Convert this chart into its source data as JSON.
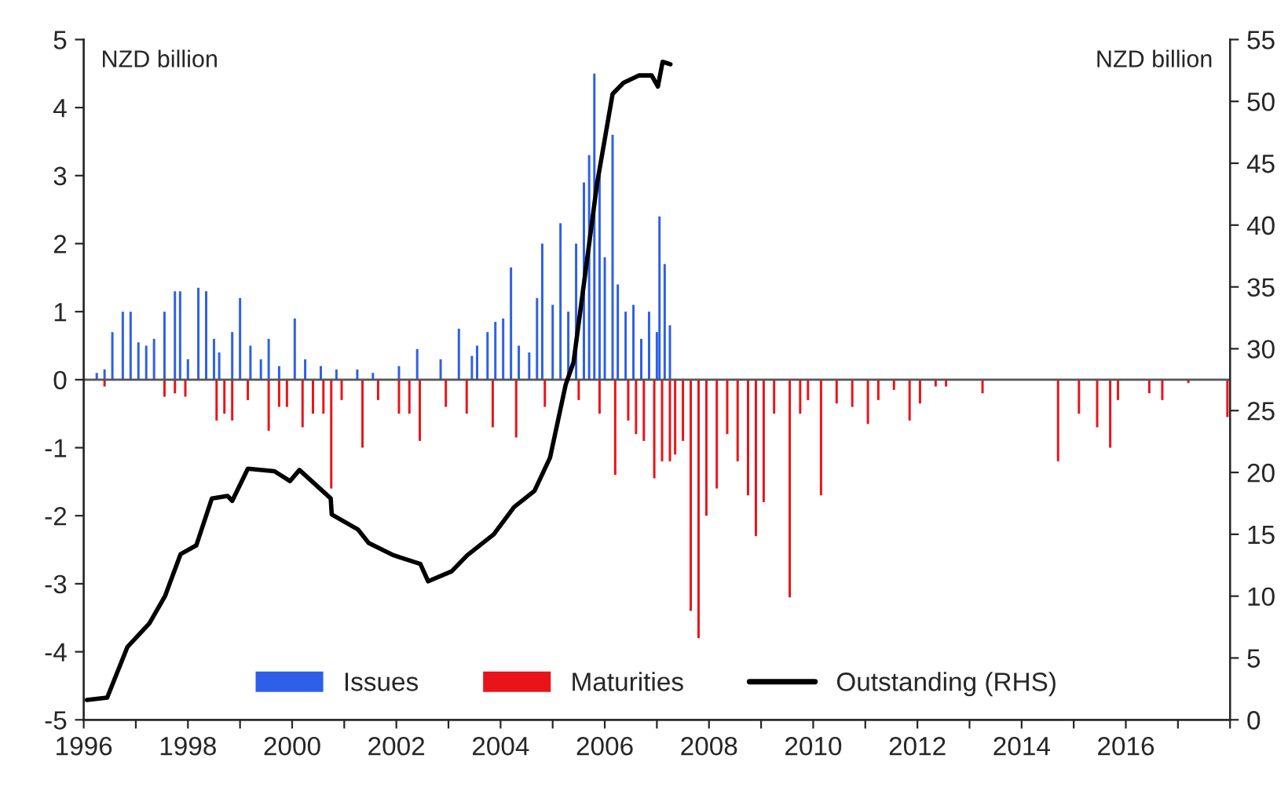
{
  "chart_data": {
    "type": "bar",
    "ylabel": "NZD billion",
    "y2label": "NZD billion",
    "xlim": [
      1996,
      2018
    ],
    "xticks": [
      1996,
      {
        "value": 1997,
        "label": null
      },
      1998,
      {
        "value": 1999,
        "label": null
      },
      2000,
      {
        "value": 2001,
        "label": null
      },
      2002,
      {
        "value": 2003,
        "label": null
      },
      2004,
      {
        "value": 2005,
        "label": null
      },
      2006,
      {
        "value": 2007,
        "label": null
      },
      2008,
      {
        "value": 2009,
        "label": null
      },
      2010,
      {
        "value": 2011,
        "label": null
      },
      2012,
      {
        "value": 2013,
        "label": null
      },
      2014,
      {
        "value": 2015,
        "label": null
      },
      2016,
      {
        "value": 2017,
        "label": null
      },
      {
        "value": 2018,
        "label": null
      }
    ],
    "ylim": [
      -5,
      5
    ],
    "yticks": [
      -5,
      -4,
      -3,
      -2,
      -1,
      0,
      1,
      2,
      3,
      4,
      5
    ],
    "y2lim": [
      0,
      55
    ],
    "y2ticks": [
      0,
      5,
      10,
      15,
      20,
      25,
      30,
      35,
      40,
      45,
      50,
      55
    ],
    "grid": false,
    "legend": "bottom",
    "ref_lines": [
      {
        "axis": "y",
        "value": 0,
        "color": "#555555"
      }
    ],
    "series": [
      {
        "name": "Issues",
        "color": "#2f5fe8",
        "x": [
          1996.25,
          1996.4,
          1996.55,
          1996.75,
          1996.9,
          1997.05,
          1997.2,
          1997.35,
          1997.55,
          1997.75,
          1997.85,
          1998.0,
          1998.2,
          1998.35,
          1998.5,
          1998.6,
          1998.85,
          1999.0,
          1999.2,
          1999.4,
          1999.55,
          1999.75,
          2000.05,
          2000.25,
          2000.55,
          2000.85,
          2001.25,
          2001.55,
          2002.05,
          2002.4,
          2002.85,
          2003.2,
          2003.45,
          2003.55,
          2003.75,
          2003.9,
          2004.05,
          2004.2,
          2004.35,
          2004.55,
          2004.7,
          2004.8,
          2005.0,
          2005.15,
          2005.3,
          2005.45,
          2005.6,
          2005.7,
          2005.8,
          2005.9,
          2006.0,
          2006.15,
          2006.25,
          2006.4,
          2006.55,
          2006.7,
          2006.85,
          2007.0,
          2007.05,
          2007.15,
          2007.25
        ],
        "values": [
          0.1,
          0.15,
          0.7,
          1.0,
          1.0,
          0.55,
          0.5,
          0.6,
          1.0,
          1.3,
          1.3,
          0.3,
          1.35,
          1.3,
          0.6,
          0.4,
          0.7,
          1.2,
          0.5,
          0.3,
          0.6,
          0.2,
          0.9,
          0.3,
          0.2,
          0.15,
          0.15,
          0.1,
          0.2,
          0.45,
          0.3,
          0.75,
          0.35,
          0.5,
          0.7,
          0.85,
          0.9,
          1.65,
          0.5,
          0.4,
          1.2,
          2.0,
          1.1,
          2.3,
          1.0,
          2.0,
          2.9,
          3.3,
          4.5,
          3.0,
          1.8,
          3.6,
          1.4,
          1.0,
          1.1,
          0.6,
          1.0,
          0.7,
          2.4,
          1.7,
          0.8
        ]
      },
      {
        "name": "Maturities",
        "color": "#e8141a",
        "x": [
          1996.4,
          1997.55,
          1997.75,
          1997.95,
          1998.55,
          1998.7,
          1998.85,
          1999.15,
          1999.55,
          1999.75,
          1999.9,
          2000.2,
          2000.4,
          2000.6,
          2000.75,
          2000.95,
          2001.35,
          2001.65,
          2002.05,
          2002.25,
          2002.45,
          2002.95,
          2003.35,
          2003.85,
          2004.3,
          2004.85,
          2005.5,
          2005.9,
          2006.2,
          2006.45,
          2006.6,
          2006.75,
          2006.95,
          2007.1,
          2007.25,
          2007.35,
          2007.5,
          2007.65,
          2007.8,
          2007.95,
          2008.15,
          2008.35,
          2008.55,
          2008.75,
          2008.9,
          2009.05,
          2009.25,
          2009.55,
          2009.75,
          2009.9,
          2010.15,
          2010.45,
          2010.75,
          2011.05,
          2011.25,
          2011.55,
          2011.85,
          2012.05,
          2012.35,
          2012.55,
          2013.25,
          2014.7,
          2015.1,
          2015.45,
          2015.7,
          2015.85,
          2016.45,
          2016.7,
          2017.2,
          2017.95
        ],
        "values": [
          -0.1,
          -0.25,
          -0.2,
          -0.25,
          -0.6,
          -0.5,
          -0.6,
          -0.3,
          -0.75,
          -0.4,
          -0.4,
          -0.7,
          -0.5,
          -0.5,
          -1.6,
          -0.3,
          -1.0,
          -0.3,
          -0.5,
          -0.5,
          -0.9,
          -0.4,
          -0.5,
          -0.7,
          -0.85,
          -0.4,
          -0.3,
          -0.5,
          -1.4,
          -0.6,
          -0.8,
          -0.9,
          -1.45,
          -1.2,
          -1.2,
          -1.1,
          -0.9,
          -3.4,
          -3.8,
          -2.0,
          -1.6,
          -0.8,
          -1.2,
          -1.7,
          -2.3,
          -1.8,
          -0.5,
          -3.2,
          -0.5,
          -0.3,
          -1.7,
          -0.35,
          -0.4,
          -0.65,
          -0.3,
          -0.15,
          -0.6,
          -0.35,
          -0.1,
          -0.1,
          -0.2,
          -1.2,
          -0.5,
          -0.7,
          -1.0,
          -0.3,
          -0.2,
          -0.3,
          -0.05,
          -0.55
        ]
      },
      {
        "name": "Outstanding (RHS)",
        "type": "line",
        "axis": "y2",
        "color": "#000000",
        "x": [
          1996.06,
          1996.45,
          1996.84,
          1997.26,
          1997.56,
          1997.86,
          1998.16,
          1998.46,
          1998.76,
          1998.85,
          1999.15,
          1999.66,
          1999.96,
          2000.14,
          2000.74,
          2000.76,
          2001.26,
          2001.47,
          2001.95,
          2002.46,
          2002.61,
          2003.06,
          2003.36,
          2003.87,
          2004.26,
          2004.65,
          2004.95,
          2005.25,
          2005.4,
          2005.67,
          2005.85,
          2006.15,
          2006.36,
          2006.66,
          2006.9,
          2007.02,
          2007.11,
          2007.26
        ],
        "values": [
          1.6,
          1.8,
          5.9,
          7.8,
          10.0,
          13.4,
          14.1,
          17.9,
          18.1,
          17.7,
          20.3,
          20.1,
          19.3,
          20.2,
          17.9,
          16.6,
          15.4,
          14.3,
          13.3,
          12.6,
          11.2,
          12.0,
          13.3,
          15.0,
          17.2,
          18.5,
          21.2,
          27.1,
          28.9,
          37.5,
          43.3,
          50.6,
          51.5,
          52.1,
          52.1,
          51.2,
          53.2,
          53.0
        ]
      }
    ]
  }
}
